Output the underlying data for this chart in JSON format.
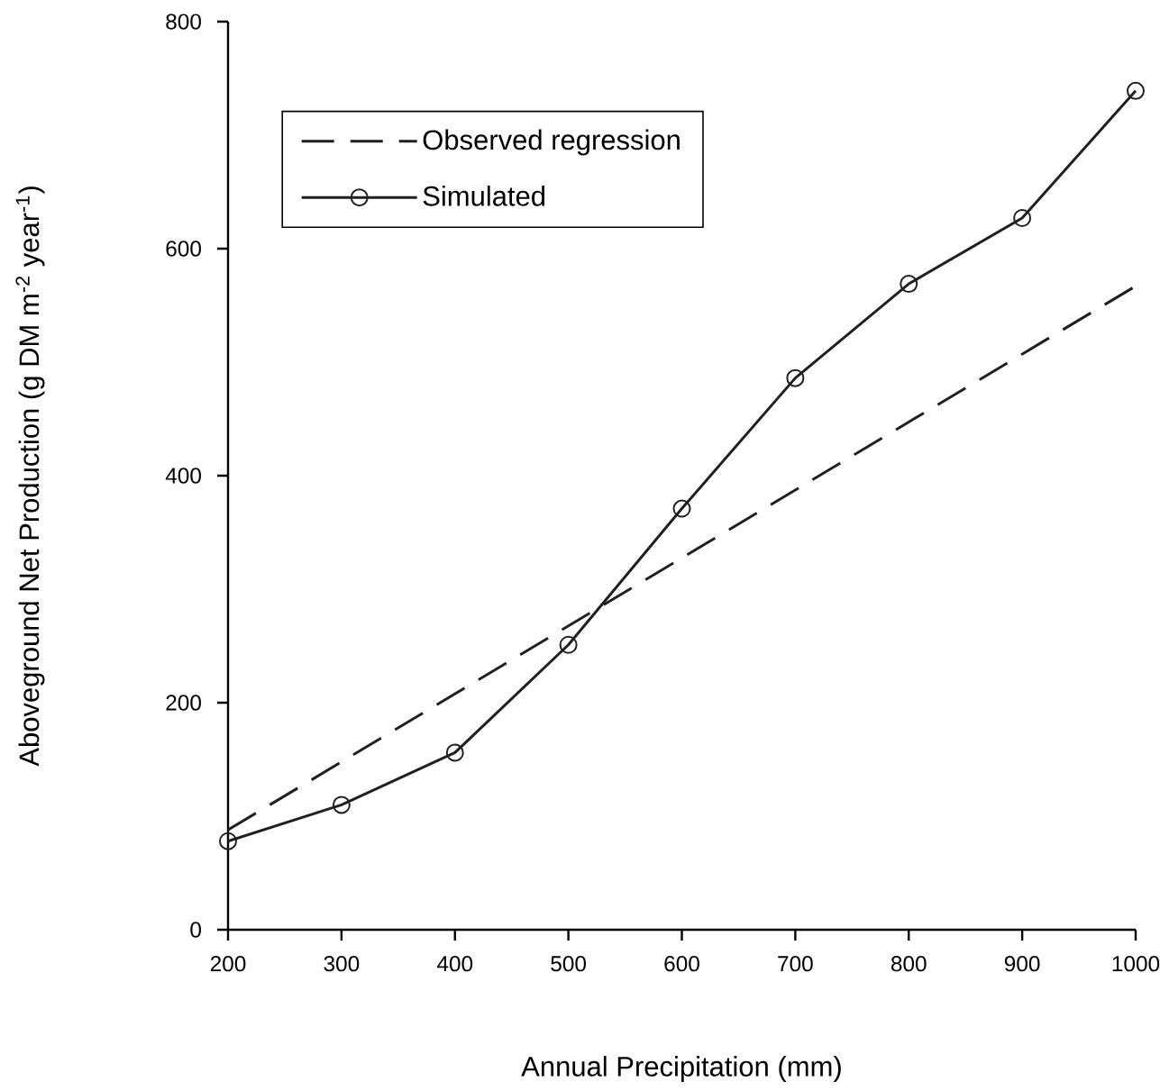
{
  "chart_data": {
    "type": "line",
    "xlabel": "Annual Precipitation (mm)",
    "ylabel": "Aboveground  Net Production (g DM m$^{-2}$ year$^{-1}$)",
    "xlim": [
      200,
      1000
    ],
    "ylim": [
      0,
      800
    ],
    "xticks": [
      200,
      300,
      400,
      500,
      600,
      700,
      800,
      900,
      1000
    ],
    "yticks": [
      0,
      200,
      400,
      600,
      800
    ],
    "grid": false,
    "legend": "top left",
    "series": [
      {
        "name": "Observed regression",
        "color": "#231f20",
        "x": [
          200,
          1000
        ],
        "values": [
          88,
          567
        ],
        "line_style": "dashed",
        "marker": "none"
      },
      {
        "name": "Simulated",
        "color": "#231f20",
        "x": [
          200,
          300,
          400,
          500,
          600,
          700,
          800,
          900,
          1000
        ],
        "values": [
          78,
          110,
          156,
          251,
          371,
          486,
          569,
          627,
          739
        ],
        "line_style": "solid",
        "marker": "circle"
      }
    ]
  }
}
